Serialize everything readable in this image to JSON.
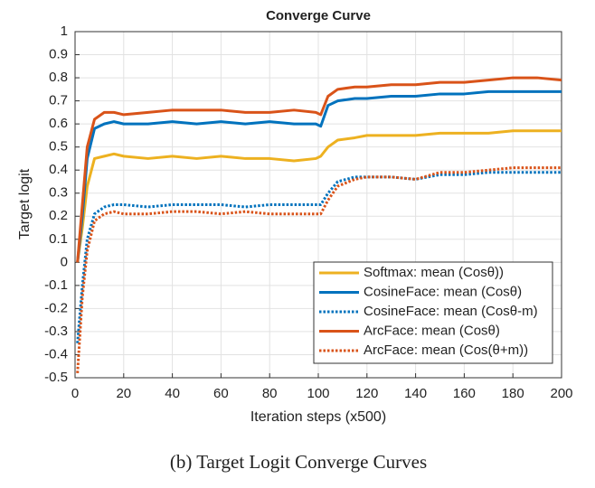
{
  "chart_data": {
    "type": "line",
    "title": "Converge Curve",
    "xlabel": "Iteration steps (x500)",
    "ylabel": "Target logit",
    "caption": "(b) Target Logit Converge Curves",
    "x": [
      1,
      3,
      5,
      8,
      12,
      16,
      20,
      30,
      40,
      50,
      60,
      70,
      80,
      90,
      99,
      101,
      104,
      108,
      115,
      120,
      130,
      140,
      150,
      160,
      170,
      180,
      190,
      200
    ],
    "series": [
      {
        "name": "Softmax: mean (Cosθ))",
        "color": "#EDB120",
        "style": "solid",
        "values": [
          0,
          0.15,
          0.33,
          0.45,
          0.46,
          0.47,
          0.46,
          0.45,
          0.46,
          0.45,
          0.46,
          0.45,
          0.45,
          0.44,
          0.45,
          0.46,
          0.5,
          0.53,
          0.54,
          0.55,
          0.55,
          0.55,
          0.56,
          0.56,
          0.56,
          0.57,
          0.57,
          0.57
        ]
      },
      {
        "name": "CosineFace: mean (Cosθ)",
        "color": "#0072BD",
        "style": "solid",
        "values": [
          0,
          0.2,
          0.45,
          0.58,
          0.6,
          0.61,
          0.6,
          0.6,
          0.61,
          0.6,
          0.61,
          0.6,
          0.61,
          0.6,
          0.6,
          0.59,
          0.68,
          0.7,
          0.71,
          0.71,
          0.72,
          0.72,
          0.73,
          0.73,
          0.74,
          0.74,
          0.74,
          0.74
        ]
      },
      {
        "name": "CosineFace: mean (Cosθ-m)",
        "color": "#0072BD",
        "style": "dotted",
        "values": [
          -0.35,
          -0.1,
          0.1,
          0.21,
          0.24,
          0.25,
          0.25,
          0.24,
          0.25,
          0.25,
          0.25,
          0.24,
          0.25,
          0.25,
          0.25,
          0.25,
          0.3,
          0.35,
          0.37,
          0.37,
          0.37,
          0.36,
          0.38,
          0.38,
          0.39,
          0.39,
          0.39,
          0.39
        ]
      },
      {
        "name": "ArcFace: mean (Cosθ)",
        "color": "#D95319",
        "style": "solid",
        "values": [
          0,
          0.25,
          0.5,
          0.62,
          0.65,
          0.65,
          0.64,
          0.65,
          0.66,
          0.66,
          0.66,
          0.65,
          0.65,
          0.66,
          0.65,
          0.64,
          0.72,
          0.75,
          0.76,
          0.76,
          0.77,
          0.77,
          0.78,
          0.78,
          0.79,
          0.8,
          0.8,
          0.79
        ]
      },
      {
        "name": "ArcFace: mean (Cos(θ+m))",
        "color": "#D95319",
        "style": "dotted",
        "values": [
          -0.48,
          -0.15,
          0.05,
          0.18,
          0.21,
          0.22,
          0.21,
          0.21,
          0.22,
          0.22,
          0.21,
          0.22,
          0.21,
          0.21,
          0.21,
          0.21,
          0.27,
          0.33,
          0.36,
          0.37,
          0.37,
          0.36,
          0.39,
          0.39,
          0.4,
          0.41,
          0.41,
          0.41
        ]
      }
    ],
    "xlim": [
      0,
      200
    ],
    "xticks": [
      0,
      20,
      40,
      60,
      80,
      100,
      120,
      140,
      160,
      180,
      200
    ],
    "ylim": [
      -0.5,
      1
    ],
    "yticks": [
      -0.5,
      -0.4,
      -0.3,
      -0.2,
      -0.1,
      0,
      0.1,
      0.2,
      0.3,
      0.4,
      0.5,
      0.6,
      0.7,
      0.8,
      0.9,
      1
    ],
    "grid": true,
    "legend": "lower right"
  }
}
